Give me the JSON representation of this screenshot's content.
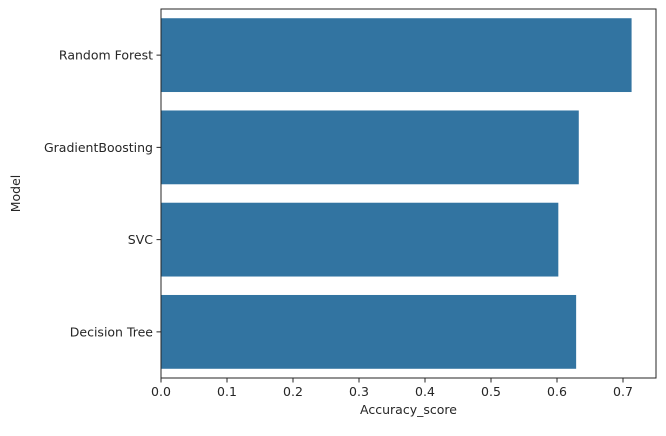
{
  "chart_data": {
    "type": "bar",
    "orientation": "horizontal",
    "categories": [
      "Random Forest",
      "GradientBoosting",
      "SVC",
      "Decision Tree"
    ],
    "values": [
      0.713,
      0.633,
      0.602,
      0.629
    ],
    "xlabel": "Accuracy_score",
    "ylabel": "Model",
    "xlim": [
      0,
      0.75
    ],
    "xticks": [
      0.0,
      0.1,
      0.2,
      0.3,
      0.4,
      0.5,
      0.6,
      0.7
    ],
    "xtick_labels": [
      "0.0",
      "0.1",
      "0.2",
      "0.3",
      "0.4",
      "0.5",
      "0.6",
      "0.7"
    ],
    "grid": false,
    "colors": {
      "bar": "#3274a1",
      "axis": "#262626"
    }
  }
}
